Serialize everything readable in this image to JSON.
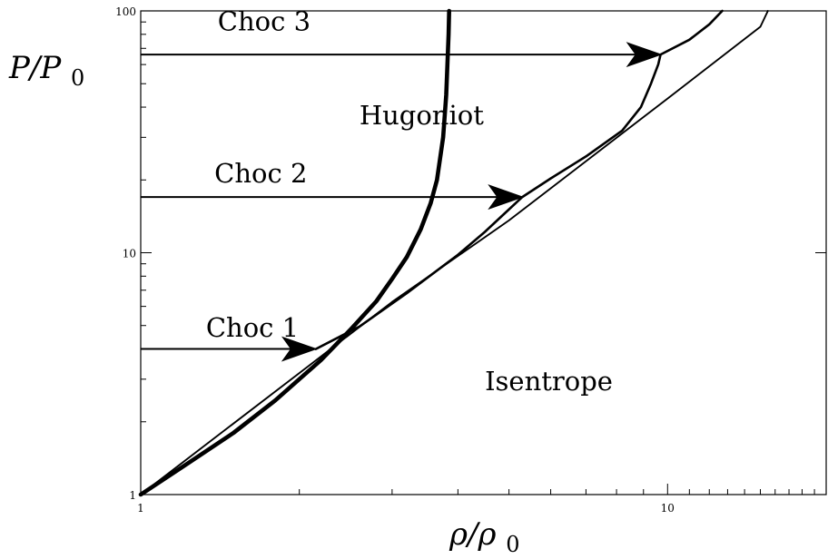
{
  "chart_data": {
    "type": "line",
    "xscale": "log",
    "yscale": "log",
    "xlim": [
      1,
      20
    ],
    "ylim": [
      1,
      100
    ],
    "grid": false,
    "xlabel": "ρ/ρ0",
    "ylabel": "P/P0",
    "x_ticks": [
      {
        "value": 1,
        "label": "1"
      },
      {
        "value": 10,
        "label": "10"
      }
    ],
    "y_ticks": [
      {
        "value": 1,
        "label": "1"
      },
      {
        "value": 10,
        "label": "10"
      },
      {
        "value": 100,
        "label": "100"
      }
    ],
    "series": [
      {
        "name": "Hugoniot",
        "style": "thick",
        "points": [
          [
            1.0,
            1.0
          ],
          [
            1.2,
            1.3
          ],
          [
            1.5,
            1.8
          ],
          [
            1.8,
            2.45
          ],
          [
            2.0,
            3.0
          ],
          [
            2.2,
            3.6
          ],
          [
            2.5,
            4.8
          ],
          [
            2.8,
            6.3
          ],
          [
            3.0,
            7.8
          ],
          [
            3.2,
            9.6
          ],
          [
            3.4,
            12.5
          ],
          [
            3.55,
            16.0
          ],
          [
            3.65,
            20.0
          ],
          [
            3.75,
            30.0
          ],
          [
            3.8,
            45.0
          ],
          [
            3.82,
            60.0
          ],
          [
            3.84,
            80.0
          ],
          [
            3.85,
            100.0
          ]
        ]
      },
      {
        "name": "Isentrope",
        "style": "thin",
        "points": [
          [
            1.0,
            1.0
          ],
          [
            2.0,
            3.18
          ],
          [
            3.0,
            6.26
          ],
          [
            5.0,
            13.6
          ],
          [
            10.0,
            43.4
          ],
          [
            15.0,
            86.0
          ],
          [
            15.5,
            100.0
          ]
        ]
      },
      {
        "name": "",
        "style": "medium",
        "points": [
          [
            2.15,
            4.0
          ],
          [
            2.6,
            4.95
          ],
          [
            3.2,
            6.8
          ],
          [
            4.0,
            9.8
          ],
          [
            4.5,
            12.2
          ],
          [
            4.9,
            14.5
          ],
          [
            5.3,
            17.0
          ],
          [
            6.0,
            20.3
          ],
          [
            7.0,
            25.0
          ],
          [
            8.2,
            32.0
          ],
          [
            8.9,
            40.0
          ],
          [
            9.3,
            50.0
          ],
          [
            9.6,
            60.0
          ],
          [
            9.7,
            66.0
          ],
          [
            11.0,
            76.0
          ],
          [
            12.0,
            88.0
          ],
          [
            12.7,
            100.0
          ]
        ]
      }
    ],
    "arrows": [
      {
        "label": "Choc 1",
        "y": 4.0,
        "x_from": 1.0,
        "x_to": 2.15
      },
      {
        "label": "Choc 2",
        "y": 17.0,
        "x_from": 1.0,
        "x_to": 5.3
      },
      {
        "label": "Choc 3",
        "y": 66.0,
        "x_from": 1.0,
        "x_to": 9.7
      }
    ],
    "annotations": [
      {
        "text": "Hugoniot",
        "x": 2.6,
        "y": 34.0
      },
      {
        "text": "Isentrope",
        "x": 4.5,
        "y": 2.7
      },
      {
        "text": "Choc 3",
        "x": 1.4,
        "y": 83.0
      },
      {
        "text": "Choc 2",
        "x": 1.38,
        "y": 19.5
      },
      {
        "text": "Choc 1",
        "x": 1.33,
        "y": 4.5
      }
    ]
  }
}
